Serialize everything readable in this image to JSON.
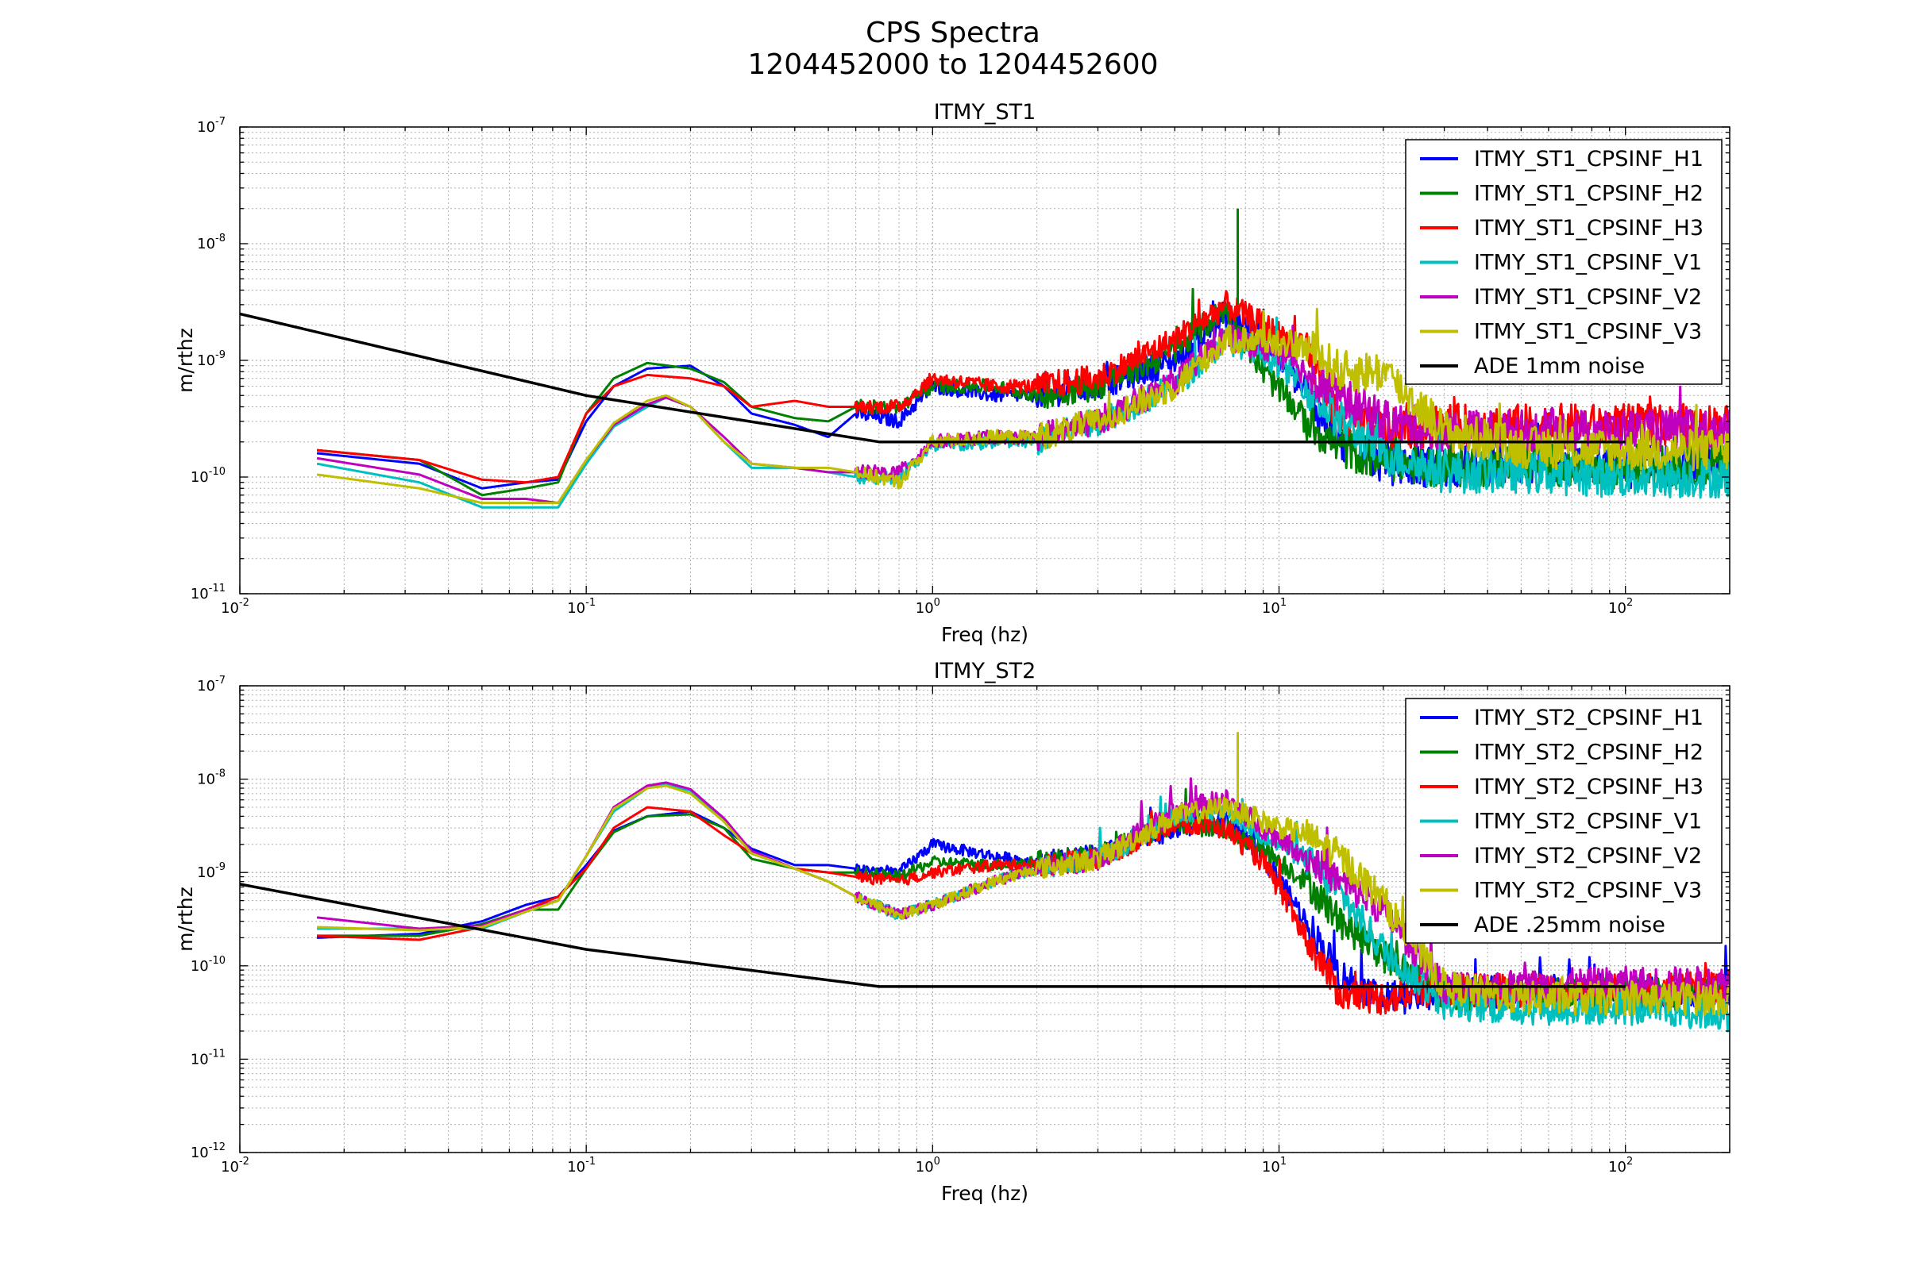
{
  "figure": {
    "title_line1": "CPS Spectra",
    "title_line2": "1204452000 to 1204452600"
  },
  "colors": {
    "blue": "#0000ff",
    "green": "#008000",
    "red": "#ff0000",
    "cyan": "#00bfbf",
    "magenta": "#bf00bf",
    "olive": "#bfbf00",
    "black": "#000000",
    "grid": "#b0b0b0"
  },
  "chart_data": [
    {
      "type": "line",
      "title": "ITMY_ST1",
      "xlabel": "Freq (hz)",
      "ylabel": "m/rthz",
      "xscale": "log",
      "yscale": "log",
      "xlim": [
        0.01,
        200
      ],
      "ylim": [
        1e-11,
        1e-07
      ],
      "grid": true,
      "legend_position": "top-right",
      "x_tick_labels": [
        {
          "base": "10",
          "exp": "-2",
          "value": 0.01
        },
        {
          "base": "10",
          "exp": "-1",
          "value": 0.1
        },
        {
          "base": "10",
          "exp": "0",
          "value": 1
        },
        {
          "base": "10",
          "exp": "1",
          "value": 10
        },
        {
          "base": "10",
          "exp": "2",
          "value": 100
        }
      ],
      "y_tick_labels": [
        {
          "base": "10",
          "exp": "-11",
          "value": 1e-11
        },
        {
          "base": "10",
          "exp": "-10",
          "value": 1e-10
        },
        {
          "base": "10",
          "exp": "-9",
          "value": 1e-09
        },
        {
          "base": "10",
          "exp": "-8",
          "value": 1e-08
        },
        {
          "base": "10",
          "exp": "-7",
          "value": 1e-07
        }
      ],
      "series": [
        {
          "name": "ITMY_ST1_CPSINF_H1",
          "color": "blue",
          "x": [
            0.0167,
            0.033,
            0.05,
            0.067,
            0.083,
            0.1,
            0.12,
            0.15,
            0.2,
            0.25,
            0.3,
            0.4,
            0.5,
            0.6,
            0.8,
            1,
            1.5,
            2,
            3,
            5,
            7,
            9,
            12,
            15,
            20,
            30,
            50,
            100,
            200
          ],
          "y": [
            1.6e-10,
            1.3e-10,
            8e-11,
            9e-11,
            9.5e-11,
            3e-10,
            6e-10,
            8.5e-10,
            9e-10,
            6e-10,
            3.5e-10,
            2.8e-10,
            2.2e-10,
            3.5e-10,
            3e-10,
            6e-10,
            5e-10,
            5e-10,
            6e-10,
            1e-09,
            2.5e-09,
            1.5e-09,
            5e-10,
            2e-10,
            1.3e-10,
            1.2e-10,
            1.3e-10,
            1.2e-10,
            1.3e-10
          ],
          "noisy_from": 2
        },
        {
          "name": "ITMY_ST1_CPSINF_H2",
          "color": "green",
          "x": [
            0.0167,
            0.033,
            0.05,
            0.067,
            0.083,
            0.1,
            0.12,
            0.15,
            0.2,
            0.25,
            0.3,
            0.4,
            0.5,
            0.6,
            0.8,
            1,
            1.5,
            2,
            3,
            5,
            7,
            9,
            12,
            15,
            20,
            30,
            50,
            100,
            200
          ],
          "y": [
            1.7e-10,
            1.4e-10,
            7e-11,
            8e-11,
            9e-11,
            3.5e-10,
            7e-10,
            9.5e-10,
            8.5e-10,
            6.5e-10,
            4e-10,
            3.2e-10,
            3e-10,
            4e-10,
            4e-10,
            6e-10,
            6e-10,
            5e-10,
            6e-10,
            1.2e-09,
            2.8e-09,
            8e-10,
            3e-10,
            1.8e-10,
            1.4e-10,
            1.2e-10,
            1.3e-10,
            1.2e-10,
            1.3e-10
          ],
          "noisy_from": 2
        },
        {
          "name": "ITMY_ST1_CPSINF_H3",
          "color": "red",
          "x": [
            0.0167,
            0.033,
            0.05,
            0.067,
            0.083,
            0.1,
            0.12,
            0.15,
            0.2,
            0.25,
            0.3,
            0.4,
            0.5,
            0.6,
            0.8,
            1,
            1.5,
            2,
            3,
            5,
            7,
            9,
            12,
            15,
            20,
            30,
            50,
            100,
            200
          ],
          "y": [
            1.7e-10,
            1.4e-10,
            9.5e-11,
            9e-11,
            1e-10,
            3.5e-10,
            6e-10,
            7.5e-10,
            7e-10,
            6e-10,
            4e-10,
            4.5e-10,
            4e-10,
            4e-10,
            4e-10,
            7e-10,
            6e-10,
            6e-10,
            7e-10,
            1.5e-09,
            3e-09,
            2e-09,
            1.2e-09,
            3e-10,
            2.5e-10,
            2.8e-10,
            2.8e-10,
            2.8e-10,
            2.8e-10
          ],
          "noisy_from": 2
        },
        {
          "name": "ITMY_ST1_CPSINF_V1",
          "color": "cyan",
          "x": [
            0.0167,
            0.033,
            0.05,
            0.067,
            0.083,
            0.1,
            0.12,
            0.15,
            0.17,
            0.2,
            0.25,
            0.3,
            0.4,
            0.5,
            0.6,
            0.8,
            1,
            1.5,
            2,
            3,
            5,
            7,
            9,
            12,
            15,
            20,
            30,
            50,
            100,
            200
          ],
          "y": [
            1.3e-10,
            9e-11,
            5.5e-11,
            5.5e-11,
            5.5e-11,
            1.3e-10,
            2.7e-10,
            4e-10,
            4.8e-10,
            4e-10,
            2e-10,
            1.2e-10,
            1.2e-10,
            1.1e-10,
            1e-10,
            1e-10,
            1.8e-10,
            2e-10,
            2e-10,
            3e-10,
            6e-10,
            1.5e-09,
            1.2e-09,
            6e-10,
            3e-10,
            1.6e-10,
            1.1e-10,
            1.1e-10,
            1e-10,
            1e-10
          ],
          "noisy_from": 2
        },
        {
          "name": "ITMY_ST1_CPSINF_V2",
          "color": "magenta",
          "x": [
            0.0167,
            0.033,
            0.05,
            0.067,
            0.083,
            0.1,
            0.12,
            0.15,
            0.17,
            0.2,
            0.25,
            0.3,
            0.4,
            0.5,
            0.6,
            0.8,
            1,
            1.5,
            2,
            3,
            5,
            7,
            9,
            12,
            15,
            20,
            30,
            50,
            100,
            200
          ],
          "y": [
            1.45e-10,
            1.05e-10,
            6.5e-11,
            6.5e-11,
            6e-11,
            1.4e-10,
            2.8e-10,
            4.2e-10,
            4.8e-10,
            4e-10,
            2.2e-10,
            1.3e-10,
            1.2e-10,
            1.1e-10,
            1.1e-10,
            1.1e-10,
            2e-10,
            2.2e-10,
            2.2e-10,
            3e-10,
            6.5e-10,
            1.6e-09,
            1.3e-09,
            8e-10,
            5e-10,
            3e-10,
            2.5e-10,
            2.5e-10,
            2.5e-10,
            2.5e-10
          ],
          "noisy_from": 2
        },
        {
          "name": "ITMY_ST1_CPSINF_V3",
          "color": "olive",
          "x": [
            0.0167,
            0.033,
            0.05,
            0.067,
            0.083,
            0.1,
            0.12,
            0.15,
            0.17,
            0.2,
            0.25,
            0.3,
            0.4,
            0.5,
            0.6,
            0.8,
            1,
            1.5,
            2,
            3,
            5,
            7,
            9,
            12,
            15,
            20,
            30,
            50,
            100,
            200
          ],
          "y": [
            1.05e-10,
            8e-11,
            6e-11,
            6e-11,
            6e-11,
            1.4e-10,
            2.9e-10,
            4.5e-10,
            5e-10,
            4e-10,
            2e-10,
            1.3e-10,
            1.2e-10,
            1.2e-10,
            1.1e-10,
            9e-11,
            2e-10,
            2.2e-10,
            2.2e-10,
            3e-10,
            6e-10,
            1.5e-09,
            1.5e-09,
            1.3e-09,
            8e-10,
            8e-10,
            2.5e-10,
            1.8e-10,
            1.7e-10,
            1.7e-10
          ],
          "noisy_from": 2
        },
        {
          "name": "ADE 1mm noise",
          "color": "black",
          "x": [
            0.01,
            0.1,
            0.7,
            100
          ],
          "y": [
            2.5e-09,
            5e-10,
            2e-10,
            2e-10
          ]
        }
      ]
    },
    {
      "type": "line",
      "title": "ITMY_ST2",
      "xlabel": "Freq (hz)",
      "ylabel": "m/rthz",
      "xscale": "log",
      "yscale": "log",
      "xlim": [
        0.01,
        200
      ],
      "ylim": [
        1e-12,
        1e-07
      ],
      "grid": true,
      "legend_position": "top-right",
      "x_tick_labels": [
        {
          "base": "10",
          "exp": "-2",
          "value": 0.01
        },
        {
          "base": "10",
          "exp": "-1",
          "value": 0.1
        },
        {
          "base": "10",
          "exp": "0",
          "value": 1
        },
        {
          "base": "10",
          "exp": "1",
          "value": 10
        },
        {
          "base": "10",
          "exp": "2",
          "value": 100
        }
      ],
      "y_tick_labels": [
        {
          "base": "10",
          "exp": "-12",
          "value": 1e-12
        },
        {
          "base": "10",
          "exp": "-11",
          "value": 1e-11
        },
        {
          "base": "10",
          "exp": "-10",
          "value": 1e-10
        },
        {
          "base": "10",
          "exp": "-9",
          "value": 1e-09
        },
        {
          "base": "10",
          "exp": "-8",
          "value": 1e-08
        },
        {
          "base": "10",
          "exp": "-7",
          "value": 1e-07
        }
      ],
      "series": [
        {
          "name": "ITMY_ST2_CPSINF_H1",
          "color": "blue",
          "x": [
            0.0167,
            0.033,
            0.05,
            0.067,
            0.083,
            0.1,
            0.12,
            0.15,
            0.2,
            0.25,
            0.3,
            0.4,
            0.5,
            0.6,
            0.8,
            1,
            1.5,
            2,
            3,
            5,
            7,
            9,
            12,
            15,
            20,
            30,
            50,
            100,
            200
          ],
          "y": [
            2e-10,
            2.2e-10,
            3e-10,
            4.5e-10,
            5.5e-10,
            1.2e-09,
            2.8e-09,
            4e-09,
            4.5e-09,
            3e-09,
            1.8e-09,
            1.2e-09,
            1.2e-09,
            1.1e-09,
            1e-09,
            2e-09,
            1.5e-09,
            1.3e-09,
            1.5e-09,
            3e-09,
            3.5e-09,
            1.5e-09,
            3e-10,
            8e-11,
            4.5e-11,
            5e-11,
            5.5e-11,
            5.5e-11,
            5.5e-11
          ],
          "noisy_from": 2
        },
        {
          "name": "ITMY_ST2_CPSINF_H2",
          "color": "green",
          "x": [
            0.0167,
            0.033,
            0.05,
            0.067,
            0.083,
            0.1,
            0.12,
            0.15,
            0.2,
            0.25,
            0.3,
            0.4,
            0.5,
            0.6,
            0.8,
            1,
            1.5,
            2,
            3,
            5,
            7,
            9,
            12,
            15,
            20,
            30,
            50,
            100,
            200
          ],
          "y": [
            2.1e-10,
            2.1e-10,
            2.8e-10,
            4e-10,
            4e-10,
            1.1e-09,
            2.7e-09,
            4e-09,
            4.2e-09,
            3e-09,
            1.4e-09,
            1.1e-09,
            1e-09,
            1e-09,
            9e-10,
            1.3e-09,
            1.2e-09,
            1.3e-09,
            1.5e-09,
            3.5e-09,
            3e-09,
            1.8e-09,
            8e-10,
            3e-10,
            1.3e-10,
            5e-11,
            5e-11,
            5e-11,
            5e-11
          ],
          "noisy_from": 2
        },
        {
          "name": "ITMY_ST2_CPSINF_H3",
          "color": "red",
          "x": [
            0.0167,
            0.033,
            0.05,
            0.067,
            0.083,
            0.1,
            0.12,
            0.15,
            0.2,
            0.25,
            0.3,
            0.4,
            0.5,
            0.6,
            0.8,
            1,
            1.5,
            2,
            3,
            5,
            7,
            9,
            12,
            15,
            20,
            30,
            50,
            100,
            200
          ],
          "y": [
            2.1e-10,
            1.9e-10,
            2.6e-10,
            4e-10,
            5.5e-10,
            1.1e-09,
            3e-09,
            5e-09,
            4.5e-09,
            2.5e-09,
            1.6e-09,
            1.1e-09,
            1e-09,
            9e-10,
            8e-10,
            1e-09,
            1.2e-09,
            1.2e-09,
            1.4e-09,
            3.5e-09,
            3e-09,
            1.3e-09,
            2e-10,
            5e-11,
            4.5e-11,
            5.5e-11,
            5.5e-11,
            5.5e-11,
            6e-11
          ],
          "noisy_from": 2
        },
        {
          "name": "ITMY_ST2_CPSINF_V1",
          "color": "cyan",
          "x": [
            0.0167,
            0.033,
            0.05,
            0.067,
            0.083,
            0.1,
            0.12,
            0.15,
            0.17,
            0.2,
            0.25,
            0.3,
            0.4,
            0.5,
            0.6,
            0.8,
            1,
            1.5,
            2,
            3,
            5,
            7,
            9,
            12,
            15,
            20,
            30,
            50,
            100,
            200
          ],
          "y": [
            2.5e-10,
            2.5e-10,
            2.5e-10,
            3.8e-10,
            5e-10,
            1.5e-09,
            4.5e-09,
            8e-09,
            8.8e-09,
            7.5e-09,
            3.5e-09,
            1.6e-09,
            1.1e-09,
            8e-10,
            5.5e-10,
            3.5e-10,
            4.5e-10,
            8e-10,
            1.1e-09,
            1.4e-09,
            4e-09,
            5e-09,
            2.5e-09,
            1.4e-09,
            6e-10,
            1.5e-10,
            4e-11,
            3.5e-11,
            3.5e-11,
            3e-11
          ],
          "noisy_from": 2
        },
        {
          "name": "ITMY_ST2_CPSINF_V2",
          "color": "magenta",
          "x": [
            0.0167,
            0.033,
            0.05,
            0.067,
            0.083,
            0.1,
            0.12,
            0.15,
            0.17,
            0.2,
            0.25,
            0.3,
            0.4,
            0.5,
            0.6,
            0.8,
            1,
            1.5,
            2,
            3,
            5,
            7,
            9,
            12,
            15,
            20,
            30,
            50,
            100,
            200
          ],
          "y": [
            3.3e-10,
            2.5e-10,
            2.7e-10,
            4e-10,
            5e-10,
            1.5e-09,
            5e-09,
            8.5e-09,
            9.2e-09,
            7.8e-09,
            3.8e-09,
            1.7e-09,
            1.1e-09,
            8e-10,
            5.5e-10,
            3.5e-10,
            4.5e-10,
            8e-10,
            1.1e-09,
            1.4e-09,
            4.5e-09,
            6e-09,
            3e-09,
            1.5e-09,
            8e-10,
            4e-10,
            6e-11,
            6e-11,
            6.5e-11,
            6.5e-11
          ],
          "noisy_from": 2
        },
        {
          "name": "ITMY_ST2_CPSINF_V3",
          "color": "olive",
          "x": [
            0.0167,
            0.033,
            0.05,
            0.067,
            0.083,
            0.1,
            0.12,
            0.15,
            0.17,
            0.2,
            0.25,
            0.3,
            0.4,
            0.5,
            0.6,
            0.8,
            1,
            1.5,
            2,
            3,
            5,
            7,
            9,
            12,
            15,
            20,
            30,
            50,
            100,
            200
          ],
          "y": [
            2.6e-10,
            2.4e-10,
            2.6e-10,
            3.8e-10,
            5e-10,
            1.5e-09,
            4.8e-09,
            8e-09,
            8.5e-09,
            7e-09,
            3.5e-09,
            1.6e-09,
            1.1e-09,
            8e-10,
            5.5e-10,
            3.5e-10,
            4.5e-10,
            8e-10,
            1.1e-09,
            1.4e-09,
            4e-09,
            5e-09,
            3.5e-09,
            2.5e-09,
            1.5e-09,
            5e-10,
            6e-11,
            4.5e-11,
            4.5e-11,
            4.5e-11
          ],
          "noisy_from": 2
        },
        {
          "name": "ADE .25mm noise",
          "color": "black",
          "x": [
            0.01,
            0.1,
            0.7,
            100
          ],
          "y": [
            7.5e-10,
            1.5e-10,
            6e-11,
            6e-11
          ]
        }
      ]
    }
  ]
}
